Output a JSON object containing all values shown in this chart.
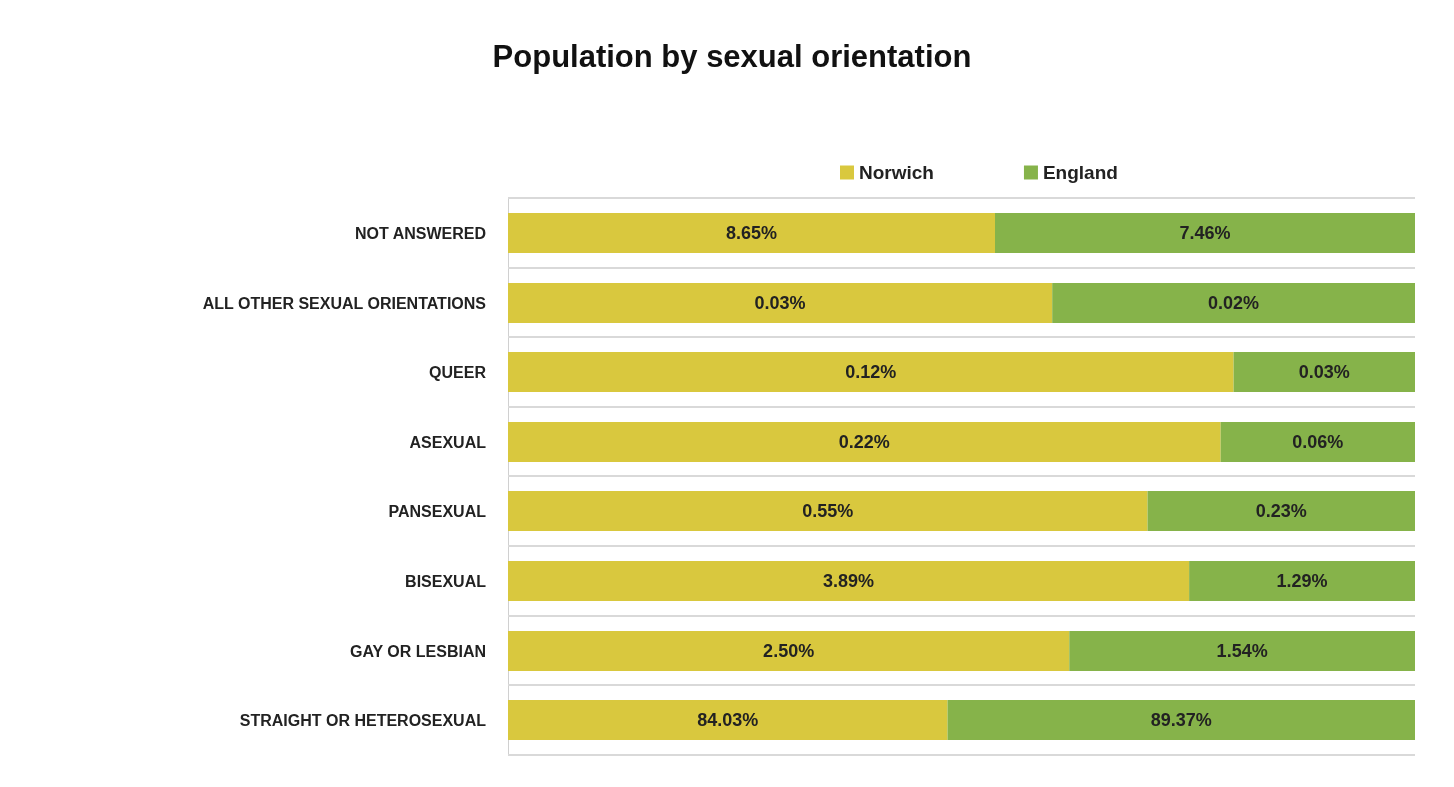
{
  "chart_data": [
    {
      "type": "bar",
      "title": "Population by sexual orientation",
      "orientation": "horizontal",
      "stacked": true,
      "tick_labels": "y",
      "legend": "top",
      "categories": [
        "NOT ANSWERED"
      ],
      "series": [
        {
          "name": "Norwich",
          "color": "#d9c83e",
          "values": [
            8.65
          ],
          "value_labels": [
            "8.65%"
          ]
        },
        {
          "name": "England",
          "color": "#86b34a",
          "values": [
            7.46
          ],
          "value_labels": [
            "7.46%"
          ]
        }
      ]
    },
    {
      "type": "bar",
      "orientation": "horizontal",
      "stacked": true,
      "tick_labels": "y",
      "categories": [
        "ALL OTHER SEXUAL ORIENTATIONS"
      ],
      "series": [
        {
          "color": "#d9c83e",
          "values": [
            0.03
          ],
          "value_labels": [
            "0.03%"
          ]
        },
        {
          "color": "#86b34a",
          "values": [
            0.02
          ],
          "value_labels": [
            "0.02%"
          ]
        }
      ]
    },
    {
      "type": "bar",
      "orientation": "horizontal",
      "stacked": true,
      "tick_labels": "y",
      "categories": [
        "QUEER"
      ],
      "series": [
        {
          "color": "#d9c83e",
          "values": [
            0.12
          ],
          "value_labels": [
            "0.12%"
          ]
        },
        {
          "color": "#86b34a",
          "values": [
            0.03
          ],
          "value_labels": [
            "0.03%"
          ]
        }
      ]
    },
    {
      "type": "bar",
      "orientation": "horizontal",
      "stacked": true,
      "tick_labels": "y",
      "categories": [
        "ASEXUAL"
      ],
      "series": [
        {
          "color": "#d9c83e",
          "values": [
            0.22
          ],
          "value_labels": [
            "0.22%"
          ]
        },
        {
          "color": "#86b34a",
          "values": [
            0.06
          ],
          "value_labels": [
            "0.06%"
          ]
        }
      ]
    },
    {
      "type": "bar",
      "orientation": "horizontal",
      "stacked": true,
      "tick_labels": "y",
      "categories": [
        "PANSEXUAL"
      ],
      "series": [
        {
          "color": "#d9c83e",
          "values": [
            0.55
          ],
          "value_labels": [
            "0.55%"
          ]
        },
        {
          "color": "#86b34a",
          "values": [
            0.23
          ],
          "value_labels": [
            "0.23%"
          ]
        }
      ]
    },
    {
      "type": "bar",
      "orientation": "horizontal",
      "stacked": true,
      "tick_labels": "y",
      "categories": [
        "BISEXUAL"
      ],
      "series": [
        {
          "color": "#d9c83e",
          "values": [
            3.89
          ],
          "value_labels": [
            "3.89%"
          ]
        },
        {
          "color": "#86b34a",
          "values": [
            1.29
          ],
          "value_labels": [
            "1.29%"
          ]
        }
      ]
    },
    {
      "type": "bar",
      "orientation": "horizontal",
      "stacked": true,
      "tick_labels": "y",
      "categories": [
        "GAY OR LESBIAN"
      ],
      "series": [
        {
          "color": "#d9c83e",
          "values": [
            2.5
          ],
          "value_labels": [
            "2.50%"
          ]
        },
        {
          "color": "#86b34a",
          "values": [
            1.54
          ],
          "value_labels": [
            "1.54%"
          ]
        }
      ]
    },
    {
      "type": "bar",
      "orientation": "horizontal",
      "stacked": true,
      "tick_labels": "y",
      "categories": [
        "STRAIGHT OR HETEROSEXUAL"
      ],
      "series": [
        {
          "color": "#d9c83e",
          "values": [
            84.03
          ],
          "value_labels": [
            "84.03%"
          ]
        },
        {
          "color": "#86b34a",
          "values": [
            89.37
          ],
          "value_labels": [
            "89.37%"
          ]
        }
      ]
    }
  ]
}
